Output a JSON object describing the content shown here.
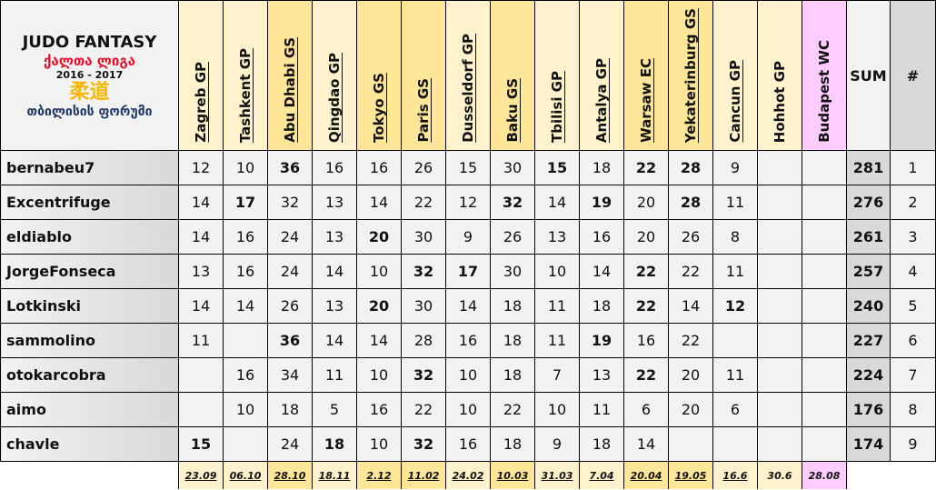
{
  "logo": {
    "title": "JUDO FANTASY",
    "league": "ქალთა ლიგა",
    "season": "2016 - 2017",
    "kanji": "柔道",
    "forum": "თბილისის ფორუმი"
  },
  "colors": {
    "GP": "#fff2cc",
    "GS": "#ffe699",
    "WC": "#ffccff",
    "sum": "#d9d9d9"
  },
  "events": [
    {
      "name": "Zagreb GP",
      "type": "GP",
      "date": "23.09",
      "underlined": true
    },
    {
      "name": "Tashkent GP",
      "type": "GP",
      "date": "06.10",
      "underlined": true
    },
    {
      "name": "Abu Dhabi GS",
      "type": "GS",
      "date": "28.10",
      "underlined": true
    },
    {
      "name": "Qingdao GP",
      "type": "GP",
      "date": "18.11",
      "underlined": true
    },
    {
      "name": "Tokyo GS",
      "type": "GS",
      "date": "2.12",
      "underlined": true
    },
    {
      "name": "Paris GS",
      "type": "GS",
      "date": "11.02",
      "underlined": true
    },
    {
      "name": "Dusseldorf GP",
      "type": "GP",
      "date": "24.02",
      "underlined": true
    },
    {
      "name": "Baku GS",
      "type": "GS",
      "date": "10.03",
      "underlined": true
    },
    {
      "name": "Tbilisi GP",
      "type": "GP",
      "date": "31.03",
      "underlined": true
    },
    {
      "name": "Antalya GP",
      "type": "GP",
      "date": "7.04",
      "underlined": true
    },
    {
      "name": "Warsaw EC",
      "type": "GS",
      "date": "20.04",
      "underlined": true
    },
    {
      "name": "Yekaterinburg GS",
      "type": "GS",
      "date": "19.05",
      "underlined": true
    },
    {
      "name": "Cancun GP",
      "type": "GP",
      "date": "16.6",
      "underlined": true
    },
    {
      "name": "Hohhot GP",
      "type": "GP",
      "date": "30.6",
      "underlined": false
    },
    {
      "name": "Budapest WC",
      "type": "WC",
      "date": "28.08",
      "underlined": false
    }
  ],
  "sum_label": "SUM",
  "rank_label": "#",
  "rows": [
    {
      "name": "bernabeu7",
      "scores": [
        "12",
        "10",
        "36",
        "16",
        "16",
        "26",
        "15",
        "30",
        "15",
        "18",
        "22",
        "28",
        "9",
        "",
        ""
      ],
      "bold": [
        2,
        8,
        10,
        11
      ],
      "sum": "281",
      "rank": "1"
    },
    {
      "name": "Excentrifuge",
      "scores": [
        "14",
        "17",
        "32",
        "13",
        "14",
        "22",
        "12",
        "32",
        "14",
        "19",
        "20",
        "28",
        "11",
        "",
        ""
      ],
      "bold": [
        1,
        7,
        9,
        11
      ],
      "sum": "276",
      "rank": "2"
    },
    {
      "name": "eldiablo",
      "scores": [
        "14",
        "16",
        "24",
        "13",
        "20",
        "30",
        "9",
        "26",
        "13",
        "16",
        "20",
        "26",
        "8",
        "",
        ""
      ],
      "bold": [
        4
      ],
      "sum": "261",
      "rank": "3"
    },
    {
      "name": "JorgeFonseca",
      "scores": [
        "13",
        "16",
        "24",
        "14",
        "10",
        "32",
        "17",
        "30",
        "10",
        "14",
        "22",
        "22",
        "11",
        "",
        ""
      ],
      "bold": [
        5,
        6,
        10
      ],
      "sum": "257",
      "rank": "4"
    },
    {
      "name": "Lotkinski",
      "scores": [
        "14",
        "14",
        "26",
        "13",
        "20",
        "30",
        "14",
        "18",
        "11",
        "18",
        "22",
        "14",
        "12",
        "",
        ""
      ],
      "bold": [
        4,
        10,
        12
      ],
      "sum": "240",
      "rank": "5"
    },
    {
      "name": "sammolino",
      "scores": [
        "11",
        "",
        "36",
        "14",
        "14",
        "28",
        "16",
        "18",
        "11",
        "19",
        "16",
        "22",
        "",
        "",
        ""
      ],
      "bold": [
        2,
        9
      ],
      "sum": "227",
      "rank": "6"
    },
    {
      "name": "otokarcobra",
      "scores": [
        "",
        "16",
        "34",
        "11",
        "10",
        "32",
        "10",
        "18",
        "7",
        "13",
        "22",
        "20",
        "11",
        "",
        ""
      ],
      "bold": [
        5,
        10
      ],
      "sum": "224",
      "rank": "7"
    },
    {
      "name": "aimo",
      "scores": [
        "",
        "10",
        "18",
        "5",
        "16",
        "22",
        "10",
        "22",
        "10",
        "11",
        "6",
        "20",
        "6",
        "",
        ""
      ],
      "bold": [],
      "sum": "176",
      "rank": "8"
    },
    {
      "name": "chavle",
      "scores": [
        "15",
        "",
        "24",
        "18",
        "10",
        "32",
        "16",
        "18",
        "9",
        "18",
        "14",
        "",
        "",
        "",
        ""
      ],
      "bold": [
        0,
        3,
        5
      ],
      "sum": "174",
      "rank": "9"
    }
  ]
}
